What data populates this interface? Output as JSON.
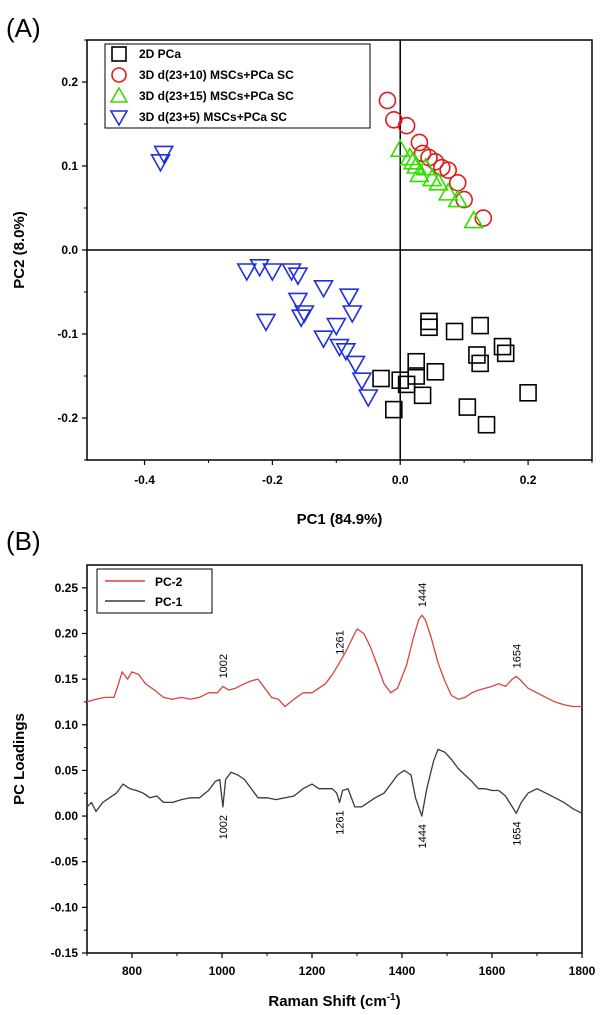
{
  "chart_data": [
    {
      "type": "scatter",
      "panel_label": "(A)",
      "xlabel": "PC1 (84.9%)",
      "ylabel": "PC2 (8.0%)",
      "xlim": [
        -0.49,
        0.3
      ],
      "ylim": [
        -0.25,
        0.25
      ],
      "xticks": [
        -0.4,
        -0.2,
        0.0,
        0.2
      ],
      "xtick_labels": [
        "-0.4",
        "-0.2",
        "0.0",
        "0.2"
      ],
      "yticks": [
        -0.2,
        -0.1,
        0.0,
        0.1,
        0.2
      ],
      "ytick_labels": [
        "-0.2",
        "-0.1",
        "0.0",
        "0.1",
        "0.2"
      ],
      "zero_lines": true,
      "legend_position": "top-left",
      "series": [
        {
          "name": "2D PCa",
          "marker": "square",
          "color": "#000000",
          "points": [
            [
              -0.03,
              -0.153
            ],
            [
              0.0,
              -0.155
            ],
            [
              0.01,
              -0.16
            ],
            [
              -0.01,
              -0.19
            ],
            [
              0.025,
              -0.133
            ],
            [
              0.025,
              -0.15
            ],
            [
              0.035,
              -0.173
            ],
            [
              0.045,
              -0.085
            ],
            [
              0.045,
              -0.092
            ],
            [
              0.055,
              -0.145
            ],
            [
              0.085,
              -0.097
            ],
            [
              0.105,
              -0.187
            ],
            [
              0.12,
              -0.125
            ],
            [
              0.125,
              -0.135
            ],
            [
              0.125,
              -0.09
            ],
            [
              0.135,
              -0.208
            ],
            [
              0.16,
              -0.115
            ],
            [
              0.165,
              -0.123
            ],
            [
              0.2,
              -0.17
            ]
          ]
        },
        {
          "name": "3D d(23+10) MSCs+PCa SC",
          "marker": "circle",
          "color": "#e31a1c",
          "points": [
            [
              -0.02,
              0.178
            ],
            [
              -0.01,
              0.155
            ],
            [
              0.01,
              0.148
            ],
            [
              0.03,
              0.128
            ],
            [
              0.035,
              0.115
            ],
            [
              0.045,
              0.11
            ],
            [
              0.065,
              0.098
            ],
            [
              0.055,
              0.105
            ],
            [
              0.075,
              0.095
            ],
            [
              0.09,
              0.08
            ],
            [
              0.1,
              0.06
            ],
            [
              0.13,
              0.038
            ]
          ]
        },
        {
          "name": "3D d(23+15) MSCs+PCa SC",
          "marker": "triangle-up",
          "color": "#33dd00",
          "points": [
            [
              0.0,
              0.12
            ],
            [
              0.015,
              0.11
            ],
            [
              0.02,
              0.105
            ],
            [
              0.025,
              0.1
            ],
            [
              0.03,
              0.09
            ],
            [
              0.04,
              0.098
            ],
            [
              0.05,
              0.085
            ],
            [
              0.06,
              0.08
            ],
            [
              0.075,
              0.068
            ],
            [
              0.09,
              0.06
            ],
            [
              0.115,
              0.035
            ]
          ]
        },
        {
          "name": "3D d(23+5) MSCs+PCa SC",
          "marker": "triangle-down",
          "color": "#1f2fe0",
          "points": [
            [
              -0.37,
              0.115
            ],
            [
              -0.375,
              0.105
            ],
            [
              -0.24,
              -0.025
            ],
            [
              -0.22,
              -0.02
            ],
            [
              -0.2,
              -0.025
            ],
            [
              -0.21,
              -0.085
            ],
            [
              -0.17,
              -0.025
            ],
            [
              -0.16,
              -0.03
            ],
            [
              -0.16,
              -0.06
            ],
            [
              -0.15,
              -0.075
            ],
            [
              -0.155,
              -0.08
            ],
            [
              -0.12,
              -0.045
            ],
            [
              -0.12,
              -0.105
            ],
            [
              -0.1,
              -0.09
            ],
            [
              -0.08,
              -0.055
            ],
            [
              -0.075,
              -0.075
            ],
            [
              -0.095,
              -0.115
            ],
            [
              -0.085,
              -0.12
            ],
            [
              -0.07,
              -0.135
            ],
            [
              -0.06,
              -0.155
            ],
            [
              -0.05,
              -0.175
            ]
          ]
        }
      ]
    },
    {
      "type": "line",
      "panel_label": "(B)",
      "xlabel": "Raman Shift (cm",
      "xlabel_sup": "-1",
      "xlabel_end": ")",
      "ylabel": "PC Loadings",
      "xlim": [
        700,
        1800
      ],
      "ylim": [
        -0.15,
        0.275
      ],
      "xticks": [
        800,
        1000,
        1200,
        1400,
        1600,
        1800
      ],
      "xtick_labels": [
        "800",
        "1000",
        "1200",
        "1400",
        "1600",
        "1800"
      ],
      "yticks": [
        -0.15,
        -0.1,
        -0.05,
        0.0,
        0.05,
        0.1,
        0.15,
        0.2,
        0.25
      ],
      "ytick_labels": [
        "-0.15",
        "-0.10",
        "-0.05",
        "0.00",
        "0.05",
        "0.10",
        "0.15",
        "0.20",
        "0.25"
      ],
      "legend_position": "top-left",
      "series": [
        {
          "name": "PC-2",
          "color": "#d9443f",
          "points": [
            [
              700,
              0.125
            ],
            [
              720,
              0.128
            ],
            [
              740,
              0.13
            ],
            [
              760,
              0.13
            ],
            [
              770,
              0.145
            ],
            [
              778,
              0.158
            ],
            [
              790,
              0.15
            ],
            [
              800,
              0.158
            ],
            [
              815,
              0.155
            ],
            [
              830,
              0.145
            ],
            [
              850,
              0.138
            ],
            [
              870,
              0.13
            ],
            [
              890,
              0.128
            ],
            [
              910,
              0.13
            ],
            [
              930,
              0.128
            ],
            [
              950,
              0.13
            ],
            [
              970,
              0.135
            ],
            [
              990,
              0.135
            ],
            [
              1002,
              0.142
            ],
            [
              1015,
              0.138
            ],
            [
              1030,
              0.14
            ],
            [
              1050,
              0.145
            ],
            [
              1065,
              0.148
            ],
            [
              1080,
              0.15
            ],
            [
              1095,
              0.14
            ],
            [
              1110,
              0.13
            ],
            [
              1125,
              0.128
            ],
            [
              1140,
              0.12
            ],
            [
              1160,
              0.128
            ],
            [
              1180,
              0.135
            ],
            [
              1200,
              0.135
            ],
            [
              1215,
              0.14
            ],
            [
              1230,
              0.145
            ],
            [
              1245,
              0.155
            ],
            [
              1261,
              0.168
            ],
            [
              1275,
              0.18
            ],
            [
              1290,
              0.195
            ],
            [
              1300,
              0.205
            ],
            [
              1315,
              0.2
            ],
            [
              1330,
              0.185
            ],
            [
              1345,
              0.165
            ],
            [
              1360,
              0.145
            ],
            [
              1375,
              0.135
            ],
            [
              1390,
              0.14
            ],
            [
              1410,
              0.165
            ],
            [
              1425,
              0.195
            ],
            [
              1437,
              0.215
            ],
            [
              1444,
              0.22
            ],
            [
              1452,
              0.215
            ],
            [
              1465,
              0.195
            ],
            [
              1480,
              0.168
            ],
            [
              1495,
              0.148
            ],
            [
              1510,
              0.132
            ],
            [
              1525,
              0.128
            ],
            [
              1540,
              0.13
            ],
            [
              1555,
              0.135
            ],
            [
              1570,
              0.138
            ],
            [
              1585,
              0.14
            ],
            [
              1600,
              0.142
            ],
            [
              1615,
              0.145
            ],
            [
              1630,
              0.142
            ],
            [
              1645,
              0.15
            ],
            [
              1654,
              0.153
            ],
            [
              1665,
              0.148
            ],
            [
              1680,
              0.14
            ],
            [
              1700,
              0.135
            ],
            [
              1720,
              0.13
            ],
            [
              1740,
              0.125
            ],
            [
              1760,
              0.122
            ],
            [
              1780,
              0.12
            ],
            [
              1800,
              0.12
            ]
          ]
        },
        {
          "name": "PC-1",
          "color": "#3a3a3a",
          "points": [
            [
              700,
              0.01
            ],
            [
              710,
              0.015
            ],
            [
              720,
              0.005
            ],
            [
              735,
              0.015
            ],
            [
              750,
              0.02
            ],
            [
              765,
              0.025
            ],
            [
              780,
              0.035
            ],
            [
              795,
              0.03
            ],
            [
              810,
              0.028
            ],
            [
              825,
              0.025
            ],
            [
              840,
              0.02
            ],
            [
              855,
              0.022
            ],
            [
              870,
              0.015
            ],
            [
              890,
              0.015
            ],
            [
              910,
              0.018
            ],
            [
              930,
              0.02
            ],
            [
              950,
              0.02
            ],
            [
              970,
              0.028
            ],
            [
              985,
              0.038
            ],
            [
              995,
              0.04
            ],
            [
              1002,
              0.01
            ],
            [
              1008,
              0.04
            ],
            [
              1020,
              0.048
            ],
            [
              1035,
              0.045
            ],
            [
              1050,
              0.04
            ],
            [
              1065,
              0.03
            ],
            [
              1080,
              0.02
            ],
            [
              1100,
              0.02
            ],
            [
              1120,
              0.018
            ],
            [
              1140,
              0.02
            ],
            [
              1160,
              0.022
            ],
            [
              1180,
              0.03
            ],
            [
              1200,
              0.035
            ],
            [
              1215,
              0.03
            ],
            [
              1230,
              0.03
            ],
            [
              1245,
              0.03
            ],
            [
              1255,
              0.025
            ],
            [
              1261,
              0.015
            ],
            [
              1268,
              0.028
            ],
            [
              1280,
              0.03
            ],
            [
              1295,
              0.01
            ],
            [
              1310,
              0.01
            ],
            [
              1325,
              0.015
            ],
            [
              1340,
              0.02
            ],
            [
              1360,
              0.025
            ],
            [
              1375,
              0.035
            ],
            [
              1390,
              0.045
            ],
            [
              1405,
              0.05
            ],
            [
              1420,
              0.045
            ],
            [
              1430,
              0.02
            ],
            [
              1444,
              0.0
            ],
            [
              1455,
              0.03
            ],
            [
              1470,
              0.06
            ],
            [
              1480,
              0.073
            ],
            [
              1495,
              0.07
            ],
            [
              1510,
              0.062
            ],
            [
              1525,
              0.052
            ],
            [
              1540,
              0.045
            ],
            [
              1555,
              0.038
            ],
            [
              1570,
              0.03
            ],
            [
              1585,
              0.03
            ],
            [
              1600,
              0.028
            ],
            [
              1615,
              0.028
            ],
            [
              1630,
              0.022
            ],
            [
              1645,
              0.01
            ],
            [
              1654,
              0.003
            ],
            [
              1665,
              0.015
            ],
            [
              1680,
              0.025
            ],
            [
              1700,
              0.03
            ],
            [
              1720,
              0.025
            ],
            [
              1740,
              0.02
            ],
            [
              1760,
              0.015
            ],
            [
              1780,
              0.008
            ],
            [
              1800,
              0.003
            ]
          ]
        }
      ],
      "annotations": [
        {
          "text": "1002",
          "series": "PC-2",
          "x": 1002,
          "y": 0.142
        },
        {
          "text": "1261",
          "series": "PC-2",
          "x": 1261,
          "y": 0.168
        },
        {
          "text": "1444",
          "series": "PC-2",
          "x": 1444,
          "y": 0.22
        },
        {
          "text": "1654",
          "series": "PC-2",
          "x": 1654,
          "y": 0.153
        },
        {
          "text": "1002",
          "series": "PC-1",
          "x": 1002,
          "y": 0.01
        },
        {
          "text": "1261",
          "series": "PC-1",
          "x": 1261,
          "y": 0.015
        },
        {
          "text": "1444",
          "series": "PC-1",
          "x": 1444,
          "y": 0.0
        },
        {
          "text": "1654",
          "series": "PC-1",
          "x": 1654,
          "y": 0.003
        }
      ]
    }
  ]
}
